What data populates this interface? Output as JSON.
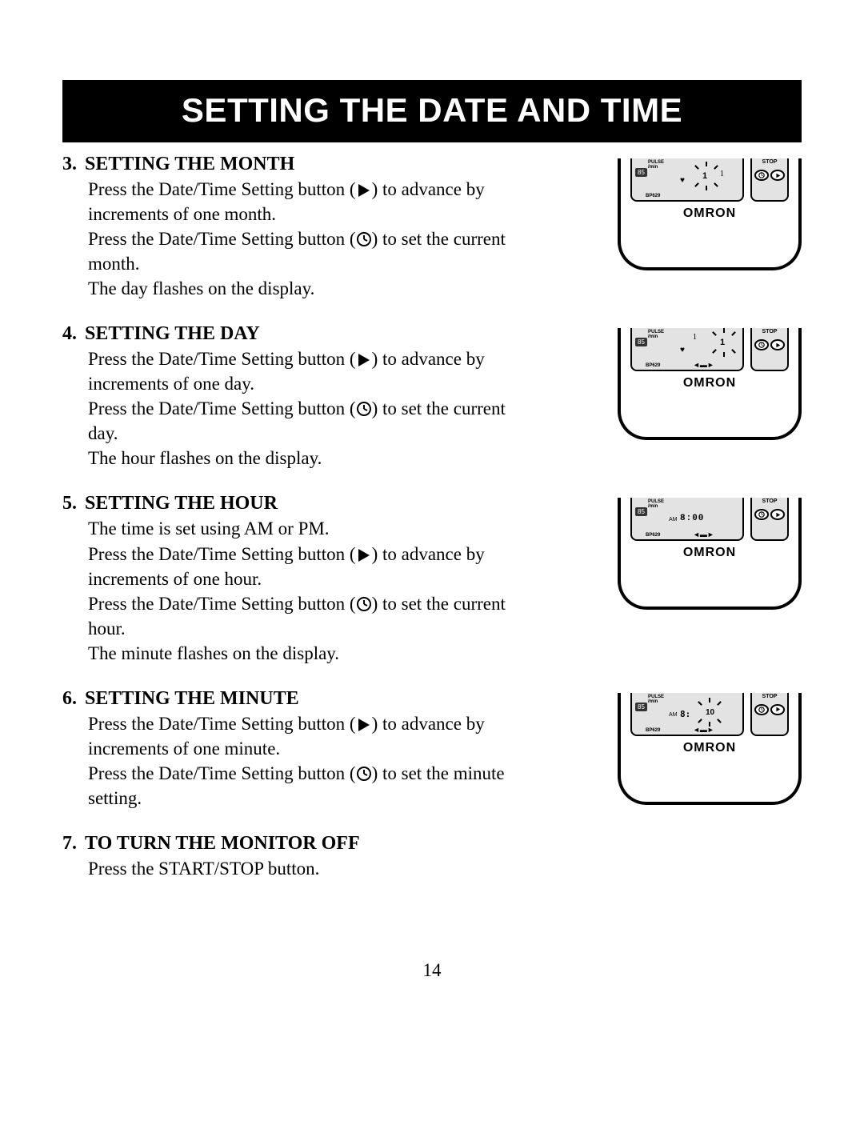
{
  "banner_title": "SETTING THE DATE AND TIME",
  "page_number": "14",
  "brand": "OMRON",
  "device_labels": {
    "pulse": "PULSE",
    "per_min": "/min",
    "model": "BP629",
    "stop": "STOP",
    "value85": "85",
    "am": "AM"
  },
  "sections": [
    {
      "num": "3.",
      "title": "SETTING THE MONTH",
      "body": "Press the Date/Time Setting button ({PLAY}) to advance by increments of one month.\nPress the Date/Time Setting button ({CLOCK}) to set the current month.\nThe day flashes on the display.",
      "device_mode": "month"
    },
    {
      "num": "4.",
      "title": "SETTING THE DAY",
      "body": "Press the Date/Time Setting button ({PLAY}) to advance by increments of one day.\nPress the Date/Time Setting button ({CLOCK}) to set the current day.\nThe hour flashes on the display.",
      "device_mode": "day"
    },
    {
      "num": "5.",
      "title": "SETTING THE HOUR",
      "body": "The time is set using AM or PM.\nPress the Date/Time Setting button ({PLAY}) to advance by increments of one hour.\nPress the Date/Time Setting button ({CLOCK}) to set the current hour.\nThe minute flashes on the display.",
      "device_mode": "hour",
      "time_display": "8:00"
    },
    {
      "num": "6.",
      "title": "SETTING THE MINUTE",
      "body": "Press the Date/Time Setting button ({PLAY}) to advance by increments of one minute.\nPress the Date/Time Setting button ({CLOCK}) to set the minute setting.",
      "device_mode": "minute",
      "time_display": "8: 10"
    },
    {
      "num": "7.",
      "title": "TO TURN THE MONITOR OFF",
      "body": "Press the START/STOP button.",
      "device_mode": null
    }
  ],
  "icons": {
    "play": "▶",
    "clock": "◯"
  }
}
